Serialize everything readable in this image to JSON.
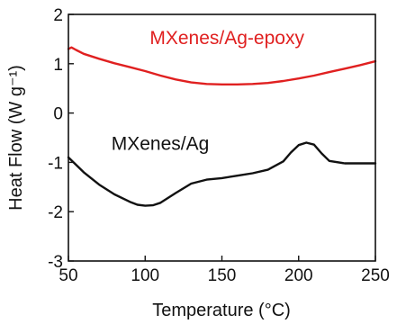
{
  "chart_data": {
    "type": "line",
    "title": "",
    "xlabel": "Temperature (°C)",
    "ylabel": "Heat Flow (W g⁻¹)",
    "xlim": [
      50,
      250
    ],
    "ylim": [
      -3,
      2
    ],
    "xticks": [
      50,
      100,
      150,
      200,
      250
    ],
    "yticks": [
      -3,
      -2,
      -1,
      0,
      1,
      2
    ],
    "grid": false,
    "legend": "none",
    "series": [
      {
        "name": "MXenes/Ag-epoxy",
        "color": "#e02020",
        "x": [
          50,
          52,
          55,
          60,
          70,
          80,
          90,
          100,
          110,
          120,
          130,
          140,
          150,
          160,
          170,
          180,
          190,
          200,
          210,
          220,
          230,
          240,
          250
        ],
        "y": [
          1.3,
          1.33,
          1.28,
          1.2,
          1.1,
          1.01,
          0.93,
          0.85,
          0.76,
          0.68,
          0.62,
          0.59,
          0.58,
          0.58,
          0.59,
          0.61,
          0.65,
          0.7,
          0.76,
          0.83,
          0.9,
          0.97,
          1.05
        ]
      },
      {
        "name": "MXenes/Ag",
        "color": "#111111",
        "x": [
          50,
          55,
          60,
          70,
          80,
          90,
          95,
          100,
          105,
          110,
          120,
          130,
          140,
          150,
          160,
          170,
          180,
          190,
          195,
          200,
          205,
          210,
          215,
          220,
          230,
          240,
          250
        ],
        "y": [
          -0.9,
          -1.05,
          -1.2,
          -1.45,
          -1.65,
          -1.8,
          -1.86,
          -1.88,
          -1.87,
          -1.82,
          -1.62,
          -1.43,
          -1.35,
          -1.32,
          -1.27,
          -1.22,
          -1.15,
          -0.98,
          -0.8,
          -0.65,
          -0.6,
          -0.64,
          -0.82,
          -0.97,
          -1.02,
          -1.02,
          -1.02
        ]
      }
    ],
    "annotations": [
      {
        "text": "MXenes/Ag-epoxy",
        "series": 0,
        "x": 103,
        "y": 1.4
      },
      {
        "text": "MXenes/Ag",
        "series": 1,
        "x": 78,
        "y": -0.75
      }
    ]
  }
}
